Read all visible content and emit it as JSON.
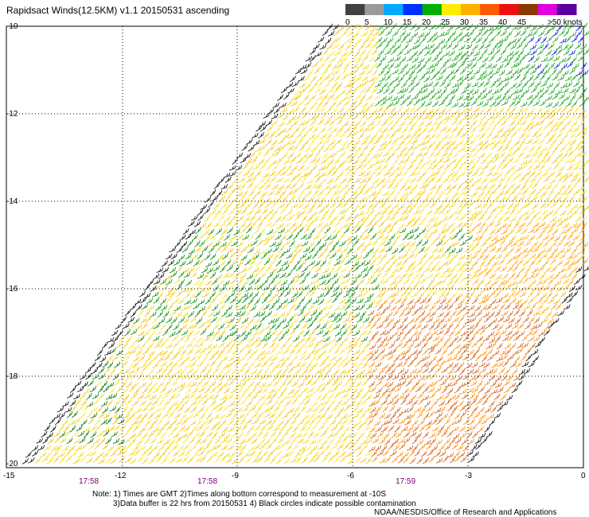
{
  "title": "Rapidsact Winds(12.5KM) v1.1 20150531 ascending",
  "colorbar": {
    "colors": [
      "#404040",
      "#9a9a9a",
      "#00a8ff",
      "#0030ff",
      "#00b000",
      "#ffee00",
      "#ffb000",
      "#ff5a00",
      "#ee1010",
      "#8a3a00",
      "#e000e0",
      "#5a00a0"
    ],
    "labels": [
      "0",
      "5",
      "10",
      "15",
      "20",
      "25",
      "30",
      "35",
      "40",
      "45",
      ">50 knots"
    ]
  },
  "axes": {
    "y_labels": [
      "-10",
      "-12",
      "-14",
      "-16",
      "-18",
      "-20"
    ],
    "x_labels": [
      "-15",
      "-12",
      "-9",
      "-6",
      "-3",
      "0"
    ],
    "times": [
      "17:58",
      "17:58",
      "17:59"
    ]
  },
  "notes": {
    "line1": "Note: 1) Times are GMT 2)Times along bottom correspond to measurement at -10S",
    "line2": "3)Data buffer is 22 hrs from 20150531 4) Black circles indicate possible contamination",
    "credit": "NOAA/NESDIS/Office of Research and Applications"
  }
}
